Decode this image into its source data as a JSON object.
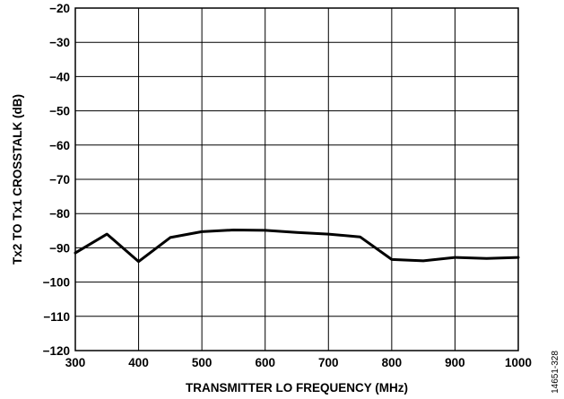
{
  "chart_data": {
    "type": "line",
    "title": "",
    "xlabel": "TRANSMITTER LO FREQUENCY (MHz)",
    "ylabel": "Tx2 TO Tx1 CROSSTALK (dB)",
    "xlim": [
      300,
      1000
    ],
    "ylim": [
      -120,
      -20
    ],
    "x_ticks": [
      300,
      400,
      500,
      600,
      700,
      800,
      900,
      1000
    ],
    "y_ticks": [
      -20,
      -30,
      -40,
      -50,
      -60,
      -70,
      -80,
      -90,
      -100,
      -110,
      -120
    ],
    "x_tick_labels": [
      "300",
      "400",
      "500",
      "600",
      "700",
      "800",
      "900",
      "1000"
    ],
    "y_tick_labels": [
      "−20",
      "−30",
      "−40",
      "−50",
      "−60",
      "−70",
      "−80",
      "−90",
      "−100",
      "−110",
      "−120"
    ],
    "x_grid_minor_step": 50,
    "grid": true,
    "legend": "none",
    "line_color": "#000000",
    "series": [
      {
        "x": [
          300,
          350,
          400,
          450,
          500,
          550,
          600,
          650,
          700,
          750,
          800,
          850,
          900,
          950,
          1000
        ],
        "values": [
          -91.5,
          -86,
          -94,
          -87,
          -85.3,
          -84.8,
          -84.9,
          -85.5,
          -86,
          -86.8,
          -93.4,
          -93.8,
          -92.8,
          -93.1,
          -92.8
        ]
      }
    ]
  },
  "figure_id": "14651-328"
}
